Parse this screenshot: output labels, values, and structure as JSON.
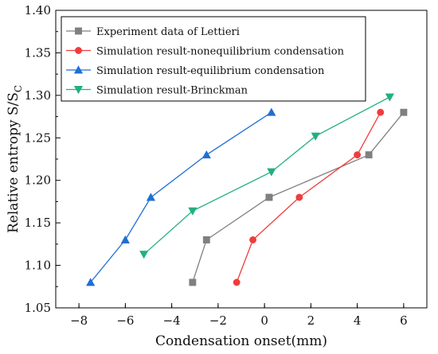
{
  "chart_data": {
    "type": "line",
    "title": "",
    "xlabel": "Condensation onset(mm)",
    "ylabel_main": "Relative entropy S/S",
    "ylabel_sub": "C",
    "xlim": [
      -9,
      7
    ],
    "ylim": [
      1.05,
      1.4
    ],
    "x_ticks": [
      -8,
      -6,
      -4,
      -2,
      0,
      2,
      4,
      6
    ],
    "x_tick_labels": [
      "−8",
      "−6",
      "−4",
      "−2",
      "0",
      "2",
      "4",
      "6"
    ],
    "y_ticks": [
      1.05,
      1.1,
      1.15,
      1.2,
      1.25,
      1.3,
      1.35,
      1.4
    ],
    "y_tick_labels": [
      "1.05",
      "1.10",
      "1.15",
      "1.20",
      "1.25",
      "1.30",
      "1.35",
      "1.40"
    ],
    "grid": false,
    "legend_position": "top-left",
    "series": [
      {
        "name": "Experiment data of Lettieri",
        "color": "#808080",
        "marker": "square",
        "points": [
          [
            -3.1,
            1.08
          ],
          [
            -2.5,
            1.13
          ],
          [
            0.2,
            1.18
          ],
          [
            4.5,
            1.23
          ],
          [
            6.0,
            1.28
          ]
        ]
      },
      {
        "name": "Simulation result-nonequilibrium condensation",
        "color": "#f03c3c",
        "marker": "circle",
        "points": [
          [
            -1.2,
            1.08
          ],
          [
            -0.5,
            1.13
          ],
          [
            1.5,
            1.18
          ],
          [
            4.0,
            1.23
          ],
          [
            5.0,
            1.28
          ]
        ]
      },
      {
        "name": "Simulation result-equilibrium condensation",
        "color": "#1f6fd6",
        "marker": "triangle-up",
        "points": [
          [
            -7.5,
            1.08
          ],
          [
            -6.0,
            1.13
          ],
          [
            -4.9,
            1.18
          ],
          [
            -2.5,
            1.23
          ],
          [
            0.3,
            1.28
          ]
        ]
      },
      {
        "name": "Simulation result-Brinckman",
        "color": "#22b07d",
        "marker": "triangle-down",
        "points": [
          [
            -5.2,
            1.113
          ],
          [
            -3.1,
            1.164
          ],
          [
            0.3,
            1.21
          ],
          [
            2.2,
            1.252
          ],
          [
            5.4,
            1.298
          ]
        ]
      }
    ]
  }
}
